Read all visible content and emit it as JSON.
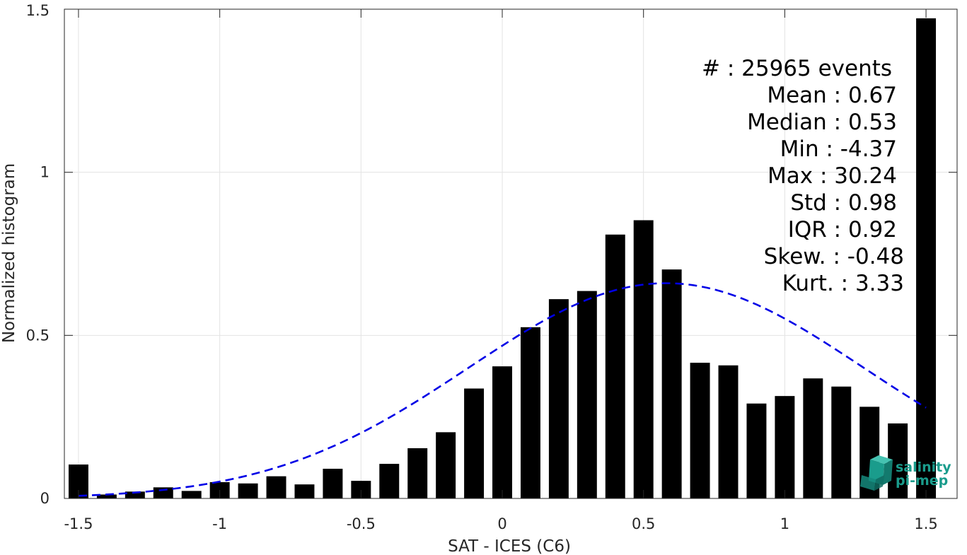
{
  "chart_data": {
    "type": "bar",
    "xlabel": "SAT - ICES (C6)",
    "ylabel": "Normalized histogram",
    "xlim": [
      -1.55,
      1.61
    ],
    "ylim": [
      0,
      1.5
    ],
    "grid": true,
    "x_ticks": [
      -1.5,
      -1,
      -0.5,
      0,
      0.5,
      1,
      1.5
    ],
    "x_tick_labels": [
      "-1.5",
      "-1",
      "-0.5",
      "0",
      "0.5",
      "1",
      "1.5"
    ],
    "y_ticks": [
      0,
      0.5,
      1,
      1.5
    ],
    "y_tick_labels": [
      "0",
      "0.5",
      "1",
      "1.5"
    ],
    "bar_width": 0.07,
    "x": [
      -1.5,
      -1.4,
      -1.3,
      -1.2,
      -1.1,
      -1.0,
      -0.9,
      -0.8,
      -0.7,
      -0.6,
      -0.5,
      -0.4,
      -0.3,
      -0.2,
      -0.1,
      0.0,
      0.1,
      0.2,
      0.3,
      0.4,
      0.5,
      0.6,
      0.7,
      0.8,
      0.9,
      1.0,
      1.1,
      1.2,
      1.3,
      1.4,
      1.5
    ],
    "values": [
      0.104,
      0.012,
      0.021,
      0.034,
      0.023,
      0.05,
      0.046,
      0.068,
      0.043,
      0.091,
      0.054,
      0.106,
      0.154,
      0.203,
      0.337,
      0.405,
      0.525,
      0.611,
      0.636,
      0.809,
      0.853,
      0.702,
      0.416,
      0.408,
      0.291,
      0.314,
      0.368,
      0.343,
      0.281,
      0.23,
      1.472
    ],
    "bar_color": "#000000",
    "fit_curve": {
      "style": "dashed",
      "color": "#0000e6",
      "mean": 0.58,
      "std": 0.7,
      "peak": 0.66,
      "x_range": [
        -1.5,
        1.5
      ]
    },
    "stats_lines": [
      "#  : 25965 events",
      "Mean : 0.67",
      "Median : 0.53",
      "Min : -4.37",
      "Max : 30.24",
      "Std : 0.98",
      "IQR : 0.92",
      "Skew. : -0.48",
      "Kurt. : 3.33"
    ]
  },
  "logo": {
    "line1": "salinity",
    "line2": "pi-mep",
    "color": "#1a9c8c"
  }
}
